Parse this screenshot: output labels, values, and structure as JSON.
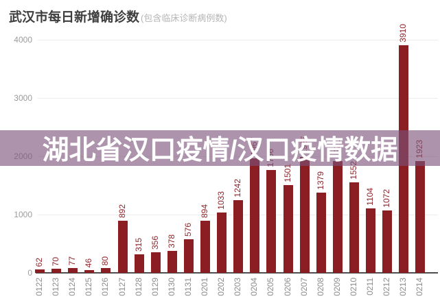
{
  "header": {
    "title": "武汉市每日新增确诊数",
    "subtitle": "(包含临床诊断病例数)"
  },
  "overlay": {
    "text": "湖北省汉口疫情/汉口疫情数据",
    "background_color": "rgba(122,82,121,0.62)"
  },
  "chart_data": {
    "type": "bar",
    "title": "武汉市每日新增确诊数",
    "subtitle": "(包含临床诊断病例数)",
    "categories": [
      "0122",
      "0123",
      "0124",
      "0125",
      "0126",
      "0127",
      "0128",
      "0129",
      "0130",
      "0131",
      "0201",
      "0202",
      "0203",
      "0204",
      "0205",
      "0206",
      "0207",
      "0208",
      "0209",
      "0210",
      "0211",
      "0212",
      "0213",
      "0214"
    ],
    "values": [
      62,
      70,
      77,
      46,
      80,
      892,
      315,
      356,
      378,
      576,
      894,
      1033,
      1242,
      1967,
      1766,
      1501,
      1985,
      1379,
      1921,
      1552,
      1104,
      1072,
      3910,
      1923
    ],
    "xlabel": "",
    "ylabel": "",
    "ylim": [
      0,
      4000
    ],
    "yticks": [
      0,
      1000,
      2000,
      3000,
      4000
    ],
    "grid": true,
    "legend": false,
    "bar_color": "#8b1e23",
    "value_label_color": "#8f2429",
    "tick_label_color": "#8c8c8c",
    "ytick_label_color": "#9b9b9b"
  }
}
